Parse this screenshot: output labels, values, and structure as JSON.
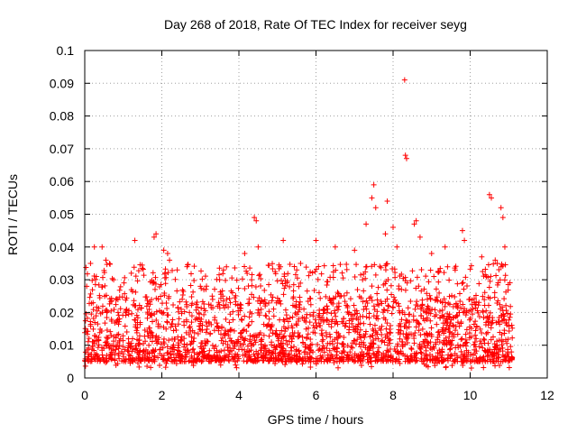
{
  "chart_data": {
    "type": "scatter",
    "title": "Day 268 of 2018, Rate Of TEC Index for receiver seyg",
    "xlabel": "GPS time / hours",
    "ylabel": "ROTI / TECUs",
    "xlim": [
      0,
      12
    ],
    "ylim": [
      0,
      0.1
    ],
    "grid": true,
    "x_ticks": [
      0,
      2,
      4,
      6,
      8,
      10,
      12
    ],
    "x_tick_labels": [
      "0",
      "2",
      "4",
      "6",
      "8",
      "10",
      "12"
    ],
    "y_ticks": [
      0,
      0.01,
      0.02,
      0.03,
      0.04,
      0.05,
      0.06,
      0.07,
      0.08,
      0.09,
      0.1
    ],
    "y_tick_labels": [
      "0",
      "0.01",
      "0.02",
      "0.03",
      "0.04",
      "0.05",
      "0.06",
      "0.07",
      "0.08",
      "0.09",
      "0.1"
    ],
    "marker": "+",
    "color": "#ff0000",
    "series": [
      {
        "name": "ROTI",
        "x_range": [
          0,
          11.1
        ],
        "typical_band": [
          0.005,
          0.025
        ],
        "x": [
          0.05,
          0.15,
          0.25,
          0.3,
          0.45,
          0.55,
          1.3,
          1.8,
          1.85,
          2.05,
          2.15,
          2.2,
          2.4,
          3.0,
          3.5,
          3.6,
          4.15,
          4.4,
          4.45,
          4.5,
          5.15,
          5.5,
          5.6,
          6.0,
          6.5,
          7.0,
          7.3,
          7.45,
          7.5,
          7.55,
          7.8,
          7.85,
          8.0,
          8.1,
          8.3,
          8.32,
          8.35,
          8.55,
          8.6,
          8.7,
          9.0,
          9.35,
          9.8,
          9.85,
          10.3,
          10.5,
          10.55,
          10.65,
          10.7,
          10.8,
          10.85,
          10.9
        ],
        "y": [
          0.028,
          0.035,
          0.04,
          0.031,
          0.04,
          0.036,
          0.042,
          0.043,
          0.044,
          0.039,
          0.038,
          0.036,
          0.033,
          0.028,
          0.03,
          0.033,
          0.038,
          0.049,
          0.048,
          0.04,
          0.042,
          0.033,
          0.035,
          0.042,
          0.04,
          0.039,
          0.047,
          0.055,
          0.059,
          0.052,
          0.044,
          0.054,
          0.046,
          0.04,
          0.091,
          0.068,
          0.067,
          0.047,
          0.048,
          0.043,
          0.038,
          0.04,
          0.045,
          0.042,
          0.037,
          0.056,
          0.055,
          0.036,
          0.035,
          0.052,
          0.049,
          0.04
        ]
      }
    ]
  }
}
